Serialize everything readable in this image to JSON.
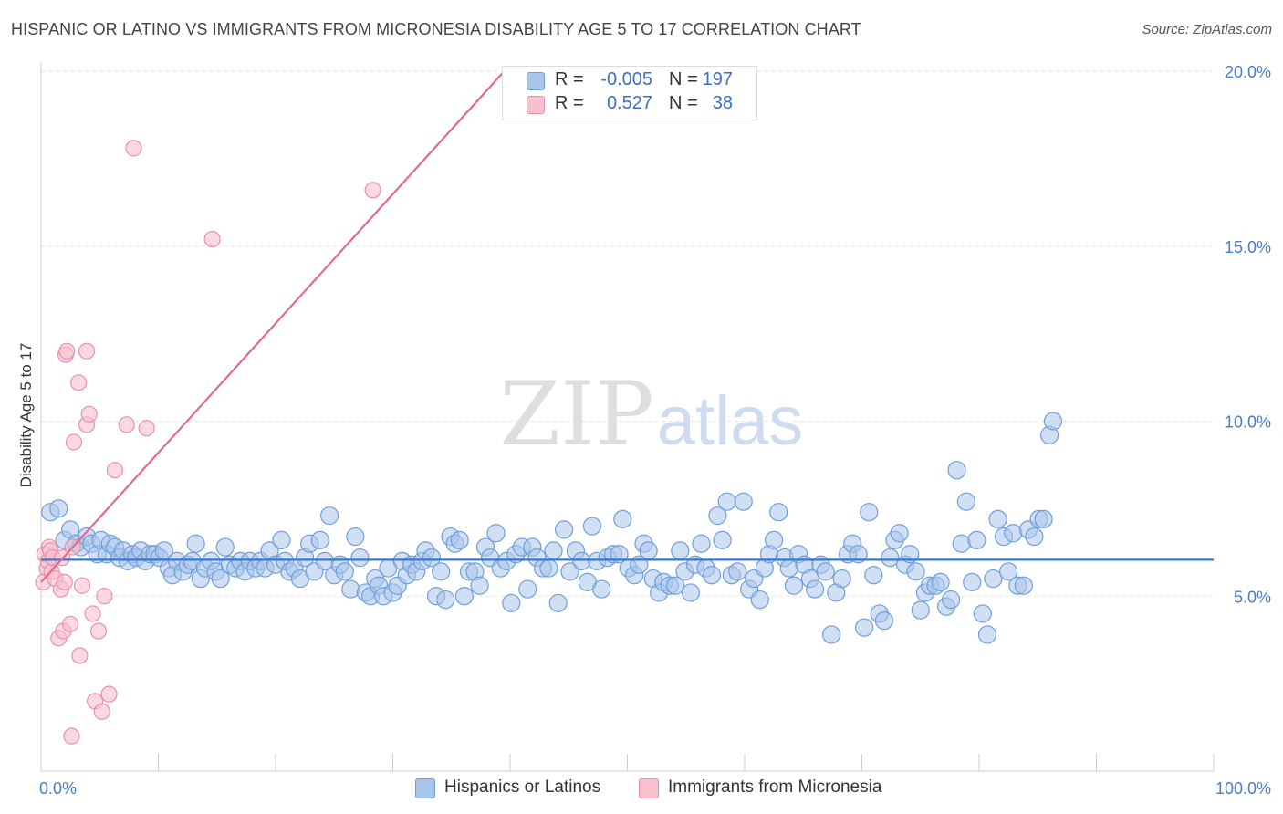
{
  "title": "HISPANIC OR LATINO VS IMMIGRANTS FROM MICRONESIA DISABILITY AGE 5 TO 17 CORRELATION CHART",
  "source": "Source: ZipAtlas.com",
  "watermark": {
    "zip": "ZIP",
    "atlas": "atlas"
  },
  "colors": {
    "blue_fill": "#a9c5eb",
    "blue_stroke": "#6f9fdb",
    "blue_line": "#3b78d0",
    "pink_fill": "#f6c0cf",
    "pink_stroke": "#ec8fab",
    "pink_line": "#e5688e",
    "axis_text": "#4a7cc9",
    "grid": "#e2e2e2"
  },
  "legend_top": [
    {
      "r_label": "R =",
      "r_value": "-0.005",
      "n_label": "N =",
      "n_value": "197"
    },
    {
      "r_label": "R =",
      "r_value": "0.527",
      "n_label": "N =",
      "n_value": "38"
    }
  ],
  "legend_bottom": [
    "Hispanics or Latinos",
    "Immigrants from Micronesia"
  ],
  "chart_data": {
    "type": "scatter",
    "title": "HISPANIC OR LATINO VS IMMIGRANTS FROM MICRONESIA DISABILITY AGE 5 TO 17 CORRELATION CHART",
    "xlabel": "",
    "ylabel": "Disability Age 5 to 17",
    "xlim": [
      0,
      100
    ],
    "ylim": [
      0,
      20
    ],
    "x_tick_labels": [
      "0.0%",
      "100.0%"
    ],
    "y_tick_values": [
      5,
      10,
      15,
      20
    ],
    "y_tick_labels": [
      "5.0%",
      "10.0%",
      "15.0%",
      "20.0%"
    ],
    "grid": true,
    "legend_position": "top-center",
    "series": [
      {
        "name": "Hispanics or Latinos",
        "color": "#a9c5eb",
        "trend": {
          "x": [
            0,
            100
          ],
          "y": [
            6.04,
            6.04
          ]
        },
        "points": [
          [
            0.8,
            7.4
          ],
          [
            1.5,
            7.5
          ],
          [
            2,
            6.6
          ],
          [
            2.5,
            6.9
          ],
          [
            3,
            6.5
          ],
          [
            3.4,
            6.4
          ],
          [
            3.9,
            6.7
          ],
          [
            4.3,
            6.5
          ],
          [
            4.8,
            6.2
          ],
          [
            5.1,
            6.6
          ],
          [
            5.6,
            6.2
          ],
          [
            5.9,
            6.5
          ],
          [
            6.3,
            6.4
          ],
          [
            6.7,
            6.1
          ],
          [
            7,
            6.3
          ],
          [
            7.4,
            6.0
          ],
          [
            7.8,
            6.2
          ],
          [
            8.1,
            6.1
          ],
          [
            8.5,
            6.3
          ],
          [
            8.9,
            6.0
          ],
          [
            9.3,
            6.2
          ],
          [
            9.7,
            6.2
          ],
          [
            10.1,
            6.1
          ],
          [
            10.5,
            6.3
          ],
          [
            10.9,
            5.8
          ],
          [
            11.2,
            5.6
          ],
          [
            11.6,
            6.0
          ],
          [
            12.1,
            5.7
          ],
          [
            12.5,
            5.9
          ],
          [
            12.9,
            6.0
          ],
          [
            13.2,
            6.5
          ],
          [
            13.6,
            5.5
          ],
          [
            14.0,
            5.8
          ],
          [
            14.5,
            6.0
          ],
          [
            14.9,
            5.7
          ],
          [
            15.3,
            5.5
          ],
          [
            15.7,
            6.4
          ],
          [
            16.1,
            5.9
          ],
          [
            16.6,
            5.8
          ],
          [
            17.0,
            6.0
          ],
          [
            17.4,
            5.7
          ],
          [
            17.8,
            6.0
          ],
          [
            18.3,
            5.8
          ],
          [
            18.7,
            6.0
          ],
          [
            19.1,
            5.8
          ],
          [
            19.5,
            6.3
          ],
          [
            20.0,
            5.9
          ],
          [
            20.5,
            6.6
          ],
          [
            20.8,
            6.0
          ],
          [
            21.2,
            5.7
          ],
          [
            21.6,
            5.8
          ],
          [
            22.1,
            5.5
          ],
          [
            22.5,
            6.1
          ],
          [
            22.9,
            6.5
          ],
          [
            23.3,
            5.7
          ],
          [
            23.8,
            6.6
          ],
          [
            24.2,
            6.0
          ],
          [
            24.6,
            7.3
          ],
          [
            25.0,
            5.6
          ],
          [
            25.5,
            5.9
          ],
          [
            25.9,
            5.7
          ],
          [
            26.4,
            5.2
          ],
          [
            26.8,
            6.7
          ],
          [
            27.2,
            6.1
          ],
          [
            27.7,
            5.1
          ],
          [
            28.1,
            5.0
          ],
          [
            28.5,
            5.5
          ],
          [
            28.8,
            5.3
          ],
          [
            29.2,
            5.0
          ],
          [
            29.6,
            5.8
          ],
          [
            30.0,
            5.1
          ],
          [
            30.4,
            5.3
          ],
          [
            30.8,
            6.0
          ],
          [
            31.2,
            5.6
          ],
          [
            31.6,
            5.9
          ],
          [
            32.0,
            5.7
          ],
          [
            32.5,
            6.0
          ],
          [
            32.8,
            6.3
          ],
          [
            33.3,
            6.1
          ],
          [
            33.7,
            5.0
          ],
          [
            34.1,
            5.7
          ],
          [
            34.5,
            4.9
          ],
          [
            34.9,
            6.7
          ],
          [
            35.3,
            6.5
          ],
          [
            35.7,
            6.6
          ],
          [
            36.1,
            5.0
          ],
          [
            36.5,
            5.7
          ],
          [
            37.0,
            5.7
          ],
          [
            37.4,
            5.3
          ],
          [
            37.9,
            6.4
          ],
          [
            38.3,
            6.1
          ],
          [
            38.8,
            6.8
          ],
          [
            39.2,
            5.8
          ],
          [
            39.7,
            6.0
          ],
          [
            40.1,
            4.8
          ],
          [
            40.5,
            6.2
          ],
          [
            41.0,
            6.4
          ],
          [
            41.5,
            5.2
          ],
          [
            41.9,
            6.4
          ],
          [
            42.3,
            6.1
          ],
          [
            42.8,
            5.8
          ],
          [
            43.3,
            5.8
          ],
          [
            43.7,
            6.3
          ],
          [
            44.1,
            4.8
          ],
          [
            44.6,
            6.9
          ],
          [
            45.1,
            5.7
          ],
          [
            45.6,
            6.3
          ],
          [
            46.1,
            6.0
          ],
          [
            46.6,
            5.4
          ],
          [
            47.0,
            7.0
          ],
          [
            47.4,
            6.0
          ],
          [
            47.8,
            5.2
          ],
          [
            48.3,
            6.1
          ],
          [
            48.8,
            6.2
          ],
          [
            49.3,
            6.2
          ],
          [
            49.6,
            7.2
          ],
          [
            50.1,
            5.8
          ],
          [
            50.6,
            5.6
          ],
          [
            51.0,
            5.9
          ],
          [
            51.4,
            6.5
          ],
          [
            51.8,
            6.3
          ],
          [
            52.2,
            5.5
          ],
          [
            52.7,
            5.1
          ],
          [
            53.1,
            5.4
          ],
          [
            53.6,
            5.3
          ],
          [
            54.1,
            5.3
          ],
          [
            54.5,
            6.3
          ],
          [
            54.9,
            5.7
          ],
          [
            55.4,
            5.1
          ],
          [
            55.8,
            5.9
          ],
          [
            56.3,
            6.5
          ],
          [
            56.7,
            5.8
          ],
          [
            57.2,
            5.6
          ],
          [
            57.7,
            7.3
          ],
          [
            58.1,
            6.6
          ],
          [
            58.5,
            7.7
          ],
          [
            58.9,
            5.6
          ],
          [
            59.4,
            5.7
          ],
          [
            59.9,
            7.7
          ],
          [
            60.4,
            5.2
          ],
          [
            60.8,
            5.5
          ],
          [
            61.3,
            4.9
          ],
          [
            61.7,
            5.8
          ],
          [
            62.1,
            6.2
          ],
          [
            62.5,
            6.6
          ],
          [
            62.9,
            7.4
          ],
          [
            63.4,
            6.1
          ],
          [
            63.8,
            5.8
          ],
          [
            64.2,
            5.3
          ],
          [
            64.6,
            6.2
          ],
          [
            65.1,
            5.9
          ],
          [
            65.6,
            5.5
          ],
          [
            66.0,
            5.2
          ],
          [
            66.5,
            5.9
          ],
          [
            66.9,
            5.7
          ],
          [
            67.4,
            3.9
          ],
          [
            67.8,
            5.1
          ],
          [
            68.3,
            5.5
          ],
          [
            68.8,
            6.2
          ],
          [
            69.2,
            6.5
          ],
          [
            69.7,
            6.2
          ],
          [
            70.2,
            4.1
          ],
          [
            70.6,
            7.4
          ],
          [
            71.0,
            5.6
          ],
          [
            71.5,
            4.5
          ],
          [
            71.9,
            4.3
          ],
          [
            72.4,
            6.1
          ],
          [
            72.8,
            6.6
          ],
          [
            73.2,
            6.8
          ],
          [
            73.7,
            5.9
          ],
          [
            74.1,
            6.2
          ],
          [
            74.6,
            5.7
          ],
          [
            75.0,
            4.6
          ],
          [
            75.4,
            5.1
          ],
          [
            75.8,
            5.3
          ],
          [
            76.3,
            5.3
          ],
          [
            76.7,
            5.4
          ],
          [
            77.2,
            4.7
          ],
          [
            77.6,
            4.9
          ],
          [
            78.1,
            8.6
          ],
          [
            78.5,
            6.5
          ],
          [
            78.9,
            7.7
          ],
          [
            79.4,
            5.4
          ],
          [
            79.8,
            6.6
          ],
          [
            80.3,
            4.5
          ],
          [
            80.7,
            3.9
          ],
          [
            81.2,
            5.5
          ],
          [
            81.6,
            7.2
          ],
          [
            82.1,
            6.7
          ],
          [
            82.5,
            5.7
          ],
          [
            82.9,
            6.8
          ],
          [
            83.3,
            5.3
          ],
          [
            83.8,
            5.3
          ],
          [
            84.2,
            6.9
          ],
          [
            84.7,
            6.7
          ],
          [
            85.1,
            7.2
          ],
          [
            85.5,
            7.2
          ],
          [
            86.0,
            9.6
          ],
          [
            86.3,
            10.0
          ]
        ]
      },
      {
        "name": "Immigrants from Micronesia",
        "color": "#f6c0cf",
        "trend": {
          "x": [
            0,
            39.5
          ],
          "y": [
            5.4,
            20.0
          ]
        },
        "points": [
          [
            0.2,
            5.4
          ],
          [
            0.3,
            6.2
          ],
          [
            0.5,
            5.8
          ],
          [
            0.6,
            6.0
          ],
          [
            0.7,
            6.4
          ],
          [
            0.8,
            6.3
          ],
          [
            0.9,
            5.7
          ],
          [
            1.0,
            6.1
          ],
          [
            1.2,
            5.5
          ],
          [
            1.5,
            3.8
          ],
          [
            1.7,
            5.2
          ],
          [
            1.8,
            6.1
          ],
          [
            1.9,
            4.0
          ],
          [
            2.0,
            5.4
          ],
          [
            2.1,
            11.9
          ],
          [
            2.2,
            12.0
          ],
          [
            2.5,
            4.2
          ],
          [
            2.6,
            1.0
          ],
          [
            2.7,
            6.4
          ],
          [
            2.8,
            9.4
          ],
          [
            3.2,
            11.1
          ],
          [
            3.3,
            3.3
          ],
          [
            3.5,
            5.3
          ],
          [
            3.9,
            12.0
          ],
          [
            3.9,
            9.9
          ],
          [
            4.1,
            10.2
          ],
          [
            4.4,
            4.5
          ],
          [
            4.6,
            2.0
          ],
          [
            4.9,
            4.0
          ],
          [
            5.2,
            1.7
          ],
          [
            5.4,
            5.0
          ],
          [
            5.8,
            2.2
          ],
          [
            6.3,
            8.6
          ],
          [
            7.3,
            9.9
          ],
          [
            7.9,
            17.8
          ],
          [
            9.0,
            9.8
          ],
          [
            14.6,
            15.2
          ],
          [
            28.3,
            16.6
          ]
        ]
      }
    ]
  }
}
